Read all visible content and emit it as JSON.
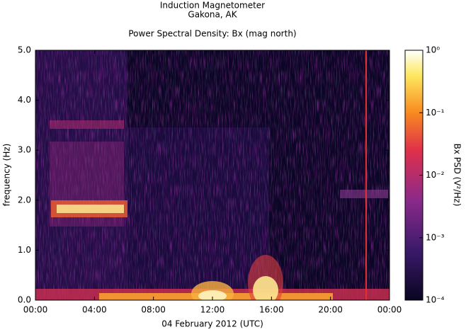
{
  "chart_data": {
    "type": "spectrogram",
    "title": "Induction Magnetometer",
    "subtitle": "Gakona, AK",
    "plot_title": "Power Spectral Density: Bx (mag north)",
    "x_label": "04 February 2012 (UTC)",
    "y_label": "frequency (Hz)",
    "xlim": [
      0,
      24
    ],
    "xticks": [
      {
        "value": 0,
        "label": "00:00"
      },
      {
        "value": 4,
        "label": "04:00"
      },
      {
        "value": 8,
        "label": "08:00"
      },
      {
        "value": 12,
        "label": "12:00"
      },
      {
        "value": 16,
        "label": "16:00"
      },
      {
        "value": 20,
        "label": "20:00"
      },
      {
        "value": 24,
        "label": "00:00"
      }
    ],
    "ylim": [
      0,
      5
    ],
    "yticks": [
      {
        "value": 0,
        "label": "0.0"
      },
      {
        "value": 1,
        "label": "1.0"
      },
      {
        "value": 2,
        "label": "2.0"
      },
      {
        "value": 3,
        "label": "3.0"
      },
      {
        "value": 4,
        "label": "4.0"
      },
      {
        "value": 5,
        "label": "5.0"
      }
    ],
    "colorbar": {
      "label": "Bx PSD (V²/Hz)",
      "scale": "log",
      "lim": [
        0.0001,
        1
      ],
      "ticks": [
        {
          "value": 0.0001,
          "label": "10⁻⁴"
        },
        {
          "value": 0.001,
          "label": "10⁻³"
        },
        {
          "value": 0.01,
          "label": "10⁻²"
        },
        {
          "value": 0.1,
          "label": "10⁻¹"
        },
        {
          "value": 1,
          "label": "10⁰"
        }
      ]
    }
  }
}
